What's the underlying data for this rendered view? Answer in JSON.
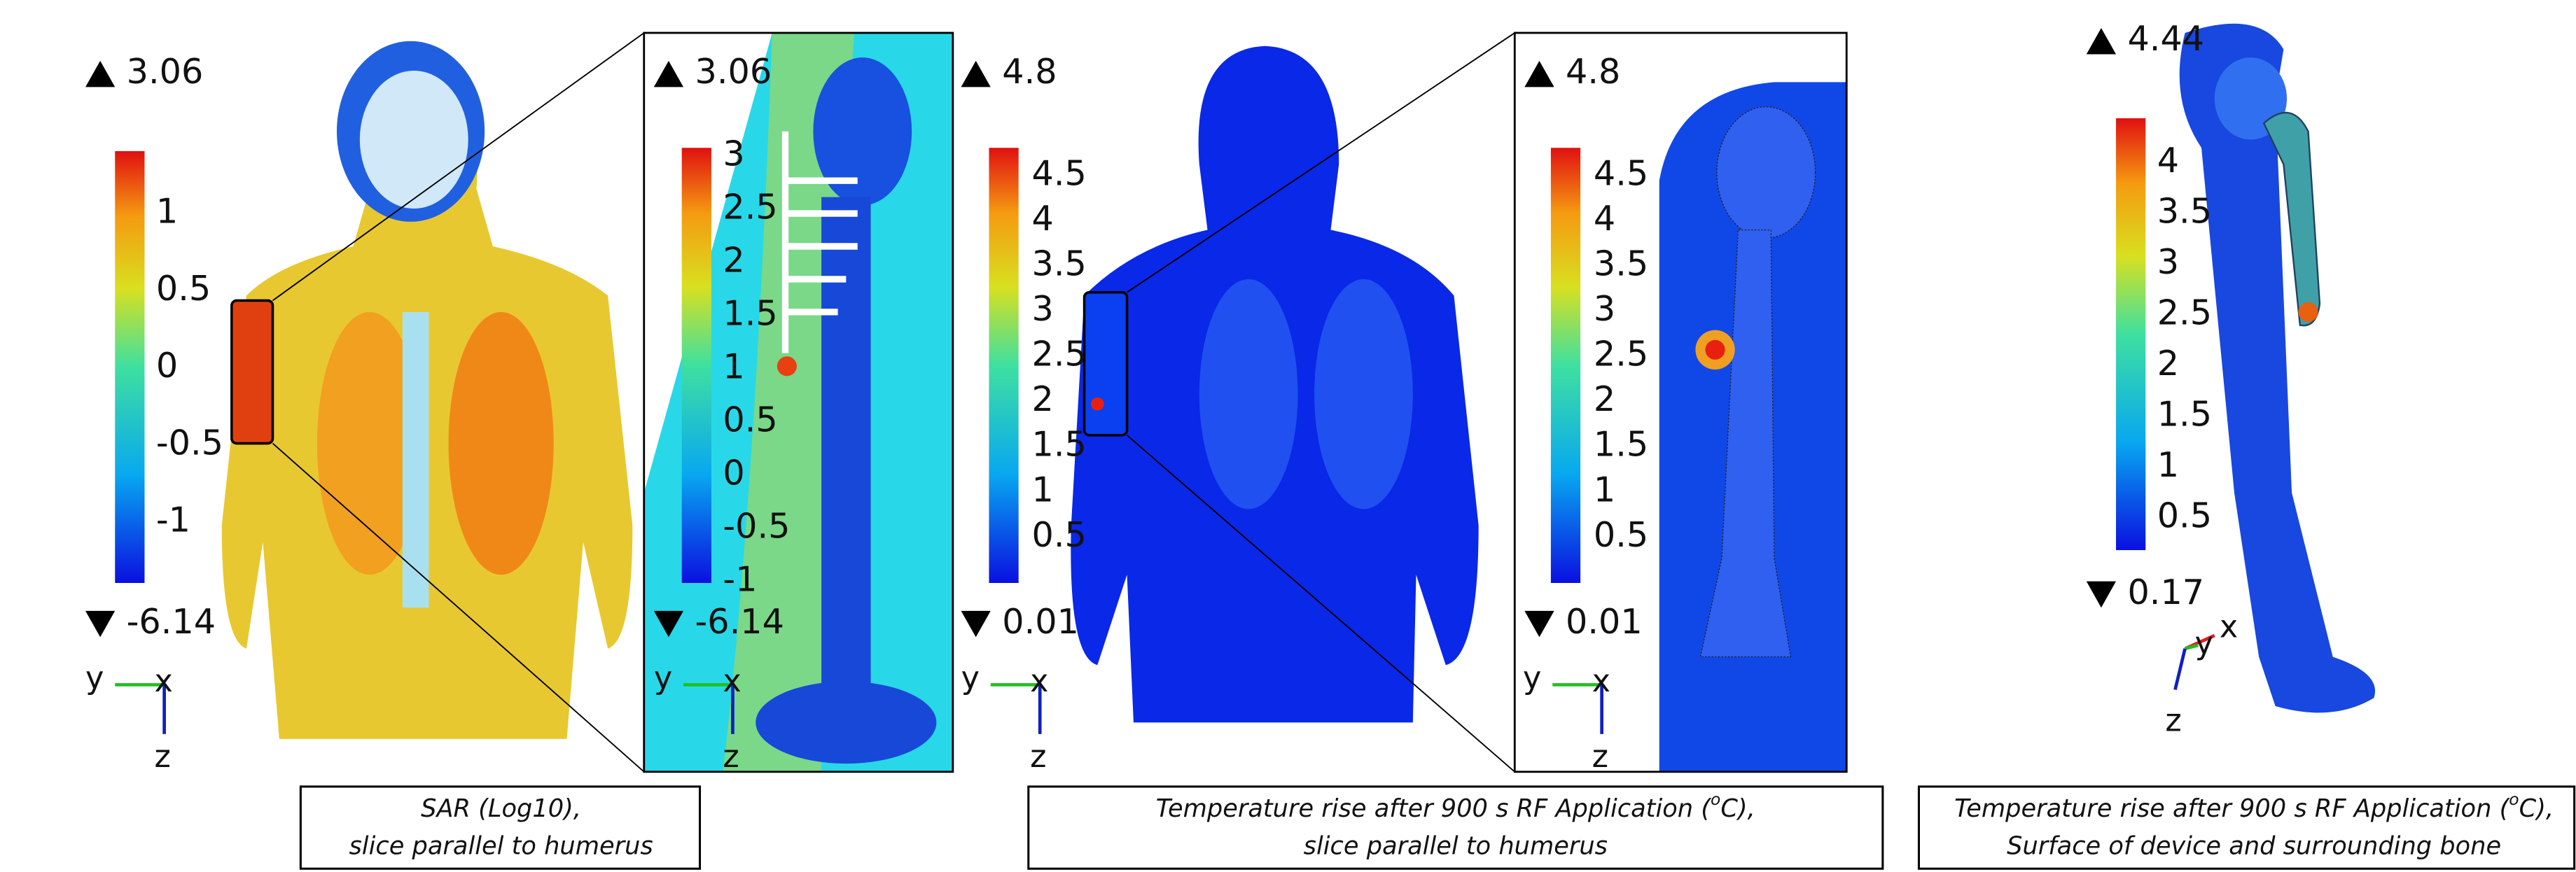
{
  "panels": [
    {
      "max": "3.06",
      "min": "-6.14",
      "ticks": [
        "1",
        "0.5",
        "0",
        "-0.5",
        "-1"
      ],
      "axes": [
        "y",
        "x",
        "z"
      ]
    },
    {
      "max": "3.06",
      "min": "-6.14",
      "ticks": [
        "3",
        "2.5",
        "2",
        "1.5",
        "1",
        "0.5",
        "0",
        "-0.5",
        "-1"
      ],
      "axes": [
        "y",
        "x",
        "z"
      ]
    },
    {
      "max": "4.8",
      "min": "0.01",
      "ticks": [
        "4.5",
        "4",
        "3.5",
        "3",
        "2.5",
        "2",
        "1.5",
        "1",
        "0.5"
      ],
      "axes": [
        "y",
        "x",
        "z"
      ]
    },
    {
      "max": "4.8",
      "min": "0.01",
      "ticks": [
        "4.5",
        "4",
        "3.5",
        "3",
        "2.5",
        "2",
        "1.5",
        "1",
        "0.5"
      ],
      "axes": [
        "y",
        "x",
        "z"
      ]
    },
    {
      "max": "4.44",
      "min": "0.17",
      "ticks": [
        "4",
        "3.5",
        "3",
        "2.5",
        "2",
        "1.5",
        "1",
        "0.5"
      ],
      "axes": [
        "x",
        "y",
        "z"
      ]
    }
  ],
  "captions": [
    {
      "lines": [
        [
          "SAR (Log10),"
        ],
        [
          "slice parallel to humerus"
        ]
      ]
    },
    {
      "lines": [
        [
          "Temperature rise after 900 s RF Application (",
          "o",
          "C),"
        ],
        [
          "slice parallel to humerus"
        ]
      ]
    },
    {
      "lines": [
        [
          "Temperature rise after 900 s RF Application (",
          "o",
          "C),"
        ],
        [
          "Surface of device and surrounding bone"
        ]
      ]
    }
  ]
}
